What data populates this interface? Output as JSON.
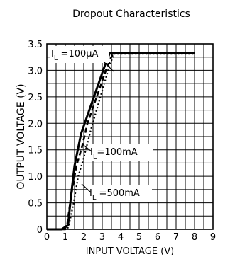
{
  "chart_data": {
    "type": "line",
    "title": "Dropout Characteristics",
    "xlabel": "INPUT VOLTAGE (V)",
    "ylabel": "OUTPUT VOLTAGE (V)",
    "xlim": [
      0,
      9
    ],
    "ylim": [
      0,
      3.5
    ],
    "x_ticks": [
      "0",
      "1",
      "2",
      "3",
      "4",
      "5",
      "6",
      "7",
      "8",
      "9"
    ],
    "y_ticks": [
      "0",
      "0.5",
      "1.0",
      "1.5",
      "2.0",
      "2.5",
      "3.0",
      "3.5"
    ],
    "grid": true,
    "series": [
      {
        "style": "solid",
        "x": [
          0,
          0.8,
          1.15,
          1.3,
          1.5,
          1.85,
          2.1,
          3.2,
          3.4,
          8
        ],
        "y": [
          0,
          0,
          0.08,
          0.6,
          1.2,
          1.8,
          2.05,
          3.15,
          3.32,
          3.32
        ]
      },
      {
        "style": "dashed",
        "x": [
          0,
          0.95,
          1.1,
          1.3,
          1.6,
          1.9,
          2.2,
          3.3,
          3.6,
          8
        ],
        "y": [
          0,
          0,
          0.08,
          0.6,
          1.2,
          1.55,
          2.0,
          3.1,
          3.33,
          3.33
        ]
      },
      {
        "style": "dotted",
        "x": [
          0,
          1.1,
          1.2,
          1.45,
          1.7,
          2.0,
          2.4,
          3.4,
          3.65,
          8
        ],
        "y": [
          0,
          0,
          0.08,
          0.5,
          1.0,
          1.35,
          1.9,
          3.1,
          3.31,
          3.31
        ]
      }
    ],
    "annotations": [
      {
        "main": "I",
        "sub": "L",
        "rest": " =100µA"
      },
      {
        "main": "I",
        "sub": "L",
        "rest": "=100mA"
      },
      {
        "main": "I",
        "sub": "L",
        "rest": " =500mA"
      }
    ]
  }
}
